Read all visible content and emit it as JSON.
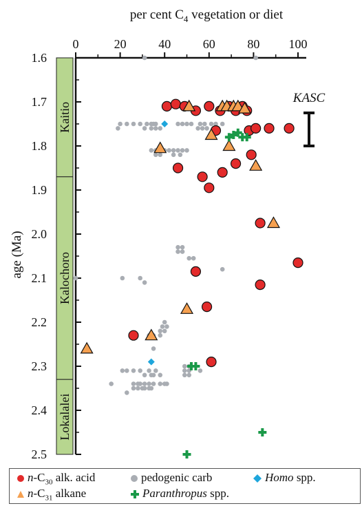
{
  "chart_data": {
    "type": "scatter",
    "xlabel": "per cent C4 vegetation or diet",
    "ylabel": "age (Ma)",
    "xlim": [
      0,
      100
    ],
    "ylim": [
      1.6,
      2.5
    ],
    "x_ticks": [
      "0",
      "20",
      "40",
      "60",
      "80",
      "100"
    ],
    "y_ticks": [
      "1.6",
      "1.7",
      "1.8",
      "1.9",
      "2.0",
      "2.1",
      "2.2",
      "2.3",
      "2.4",
      "2.5"
    ],
    "members": [
      {
        "label": "Kaitio",
        "from": 1.6,
        "to": 1.87
      },
      {
        "label": "Kalochoro",
        "from": 1.87,
        "to": 2.33
      },
      {
        "label": "Lokalalei",
        "from": 2.33,
        "to": 2.5
      }
    ],
    "kasc": {
      "label": "KASC",
      "from": 1.725,
      "to": 1.8
    },
    "series": [
      {
        "name": "n-C30 alk. acid",
        "marker": "circle",
        "color": "#e32b2b",
        "points": [
          [
            41,
            1.71
          ],
          [
            45,
            1.705
          ],
          [
            49,
            1.71
          ],
          [
            54,
            1.72
          ],
          [
            60,
            1.71
          ],
          [
            65,
            1.72
          ],
          [
            69,
            1.71
          ],
          [
            72,
            1.72
          ],
          [
            75,
            1.71
          ],
          [
            77,
            1.72
          ],
          [
            78,
            1.765
          ],
          [
            81,
            1.76
          ],
          [
            87,
            1.76
          ],
          [
            96,
            1.76
          ],
          [
            63,
            1.765
          ],
          [
            79,
            1.82
          ],
          [
            72,
            1.84
          ],
          [
            66,
            1.86
          ],
          [
            57,
            1.87
          ],
          [
            46,
            1.85
          ],
          [
            60,
            1.895
          ],
          [
            83,
            1.975
          ],
          [
            100,
            2.065
          ],
          [
            54,
            2.085
          ],
          [
            83,
            2.115
          ],
          [
            59,
            2.165
          ],
          [
            26,
            2.23
          ],
          [
            61,
            2.29
          ]
        ]
      },
      {
        "name": "n-C31 alkane",
        "marker": "triangle",
        "color": "#f5a050",
        "points": [
          [
            51,
            1.71
          ],
          [
            66,
            1.71
          ],
          [
            68,
            1.71
          ],
          [
            71,
            1.71
          ],
          [
            73,
            1.71
          ],
          [
            76,
            1.715
          ],
          [
            61,
            1.775
          ],
          [
            38,
            1.805
          ],
          [
            69,
            1.8
          ],
          [
            81,
            1.845
          ],
          [
            89,
            1.975
          ],
          [
            50,
            2.17
          ],
          [
            34,
            2.23
          ],
          [
            5,
            2.26
          ]
        ]
      },
      {
        "name": "pedogenic carb",
        "marker": "dot",
        "color": "#a9adb3",
        "points": [
          [
            31,
            1.6
          ],
          [
            81,
            1.6
          ],
          [
            20,
            1.75
          ],
          [
            23,
            1.75
          ],
          [
            26,
            1.75
          ],
          [
            29,
            1.75
          ],
          [
            32,
            1.75
          ],
          [
            34,
            1.75
          ],
          [
            35,
            1.75
          ],
          [
            36,
            1.75
          ],
          [
            46,
            1.75
          ],
          [
            48,
            1.75
          ],
          [
            50,
            1.75
          ],
          [
            52,
            1.75
          ],
          [
            56,
            1.75
          ],
          [
            58,
            1.75
          ],
          [
            61,
            1.75
          ],
          [
            63,
            1.75
          ],
          [
            66,
            1.75
          ],
          [
            19,
            1.76
          ],
          [
            31,
            1.76
          ],
          [
            34,
            1.76
          ],
          [
            36,
            1.76
          ],
          [
            38,
            1.76
          ],
          [
            55,
            1.76
          ],
          [
            57,
            1.76
          ],
          [
            59,
            1.76
          ],
          [
            62,
            1.76
          ],
          [
            64,
            1.76
          ],
          [
            34,
            1.81
          ],
          [
            36,
            1.81
          ],
          [
            38,
            1.81
          ],
          [
            40,
            1.81
          ],
          [
            42,
            1.81
          ],
          [
            44,
            1.81
          ],
          [
            46,
            1.81
          ],
          [
            48,
            1.81
          ],
          [
            50,
            1.81
          ],
          [
            36,
            1.82
          ],
          [
            38,
            1.82
          ],
          [
            44,
            1.82
          ],
          [
            47,
            1.82
          ],
          [
            46,
            2.03
          ],
          [
            48,
            2.03
          ],
          [
            46,
            2.04
          ],
          [
            48,
            2.04
          ],
          [
            51,
            2.055
          ],
          [
            53,
            2.055
          ],
          [
            66,
            2.08
          ],
          [
            0,
            2.1
          ],
          [
            21,
            2.1
          ],
          [
            29,
            2.1
          ],
          [
            31,
            2.11
          ],
          [
            40,
            2.2
          ],
          [
            39,
            2.21
          ],
          [
            41,
            2.21
          ],
          [
            38,
            2.22
          ],
          [
            40,
            2.22
          ],
          [
            33,
            2.23
          ],
          [
            35,
            2.23
          ],
          [
            38,
            2.23
          ],
          [
            35,
            2.26
          ],
          [
            21,
            2.31
          ],
          [
            23,
            2.31
          ],
          [
            26,
            2.31
          ],
          [
            29,
            2.31
          ],
          [
            33,
            2.31
          ],
          [
            36,
            2.31
          ],
          [
            31,
            2.32
          ],
          [
            34,
            2.32
          ],
          [
            35,
            2.32
          ],
          [
            38,
            2.32
          ],
          [
            49,
            2.3
          ],
          [
            51,
            2.3
          ],
          [
            49,
            2.31
          ],
          [
            51,
            2.31
          ],
          [
            49,
            2.32
          ],
          [
            51,
            2.32
          ],
          [
            56,
            2.31
          ],
          [
            16,
            2.34
          ],
          [
            26,
            2.34
          ],
          [
            28,
            2.34
          ],
          [
            29,
            2.34
          ],
          [
            31,
            2.34
          ],
          [
            33,
            2.34
          ],
          [
            35,
            2.34
          ],
          [
            38,
            2.34
          ],
          [
            40,
            2.34
          ],
          [
            41,
            2.34
          ],
          [
            26,
            2.35
          ],
          [
            28,
            2.35
          ],
          [
            30,
            2.35
          ],
          [
            31,
            2.35
          ],
          [
            33,
            2.35
          ],
          [
            34,
            2.35
          ],
          [
            23,
            2.36
          ]
        ]
      },
      {
        "name": "Homo spp.",
        "marker": "diamond",
        "color": "#1ea6dc",
        "points": [
          [
            40,
            1.75
          ],
          [
            34,
            2.29
          ]
        ]
      },
      {
        "name": "Paranthropus spp.",
        "marker": "cross",
        "color": "#1a9948",
        "points": [
          [
            69,
            1.78
          ],
          [
            71,
            1.775
          ],
          [
            73,
            1.77
          ],
          [
            75,
            1.78
          ],
          [
            77,
            1.78
          ],
          [
            52,
            2.3
          ],
          [
            54,
            2.3
          ],
          [
            84,
            2.45
          ],
          [
            50,
            2.5
          ]
        ]
      }
    ]
  },
  "legend": [
    {
      "key": "alk",
      "pre": "n",
      "base": "-C",
      "sub": "30",
      "post": " alk. acid"
    },
    {
      "key": "ped",
      "text": "pedogenic carb"
    },
    {
      "key": "homo",
      "italic": "Homo",
      "post": " spp."
    },
    {
      "key": "alkane",
      "pre": "n",
      "base": "-C",
      "sub": "31",
      "post": " alkane"
    },
    {
      "key": "para",
      "italic": "Paranthropus",
      "post": " spp."
    }
  ]
}
